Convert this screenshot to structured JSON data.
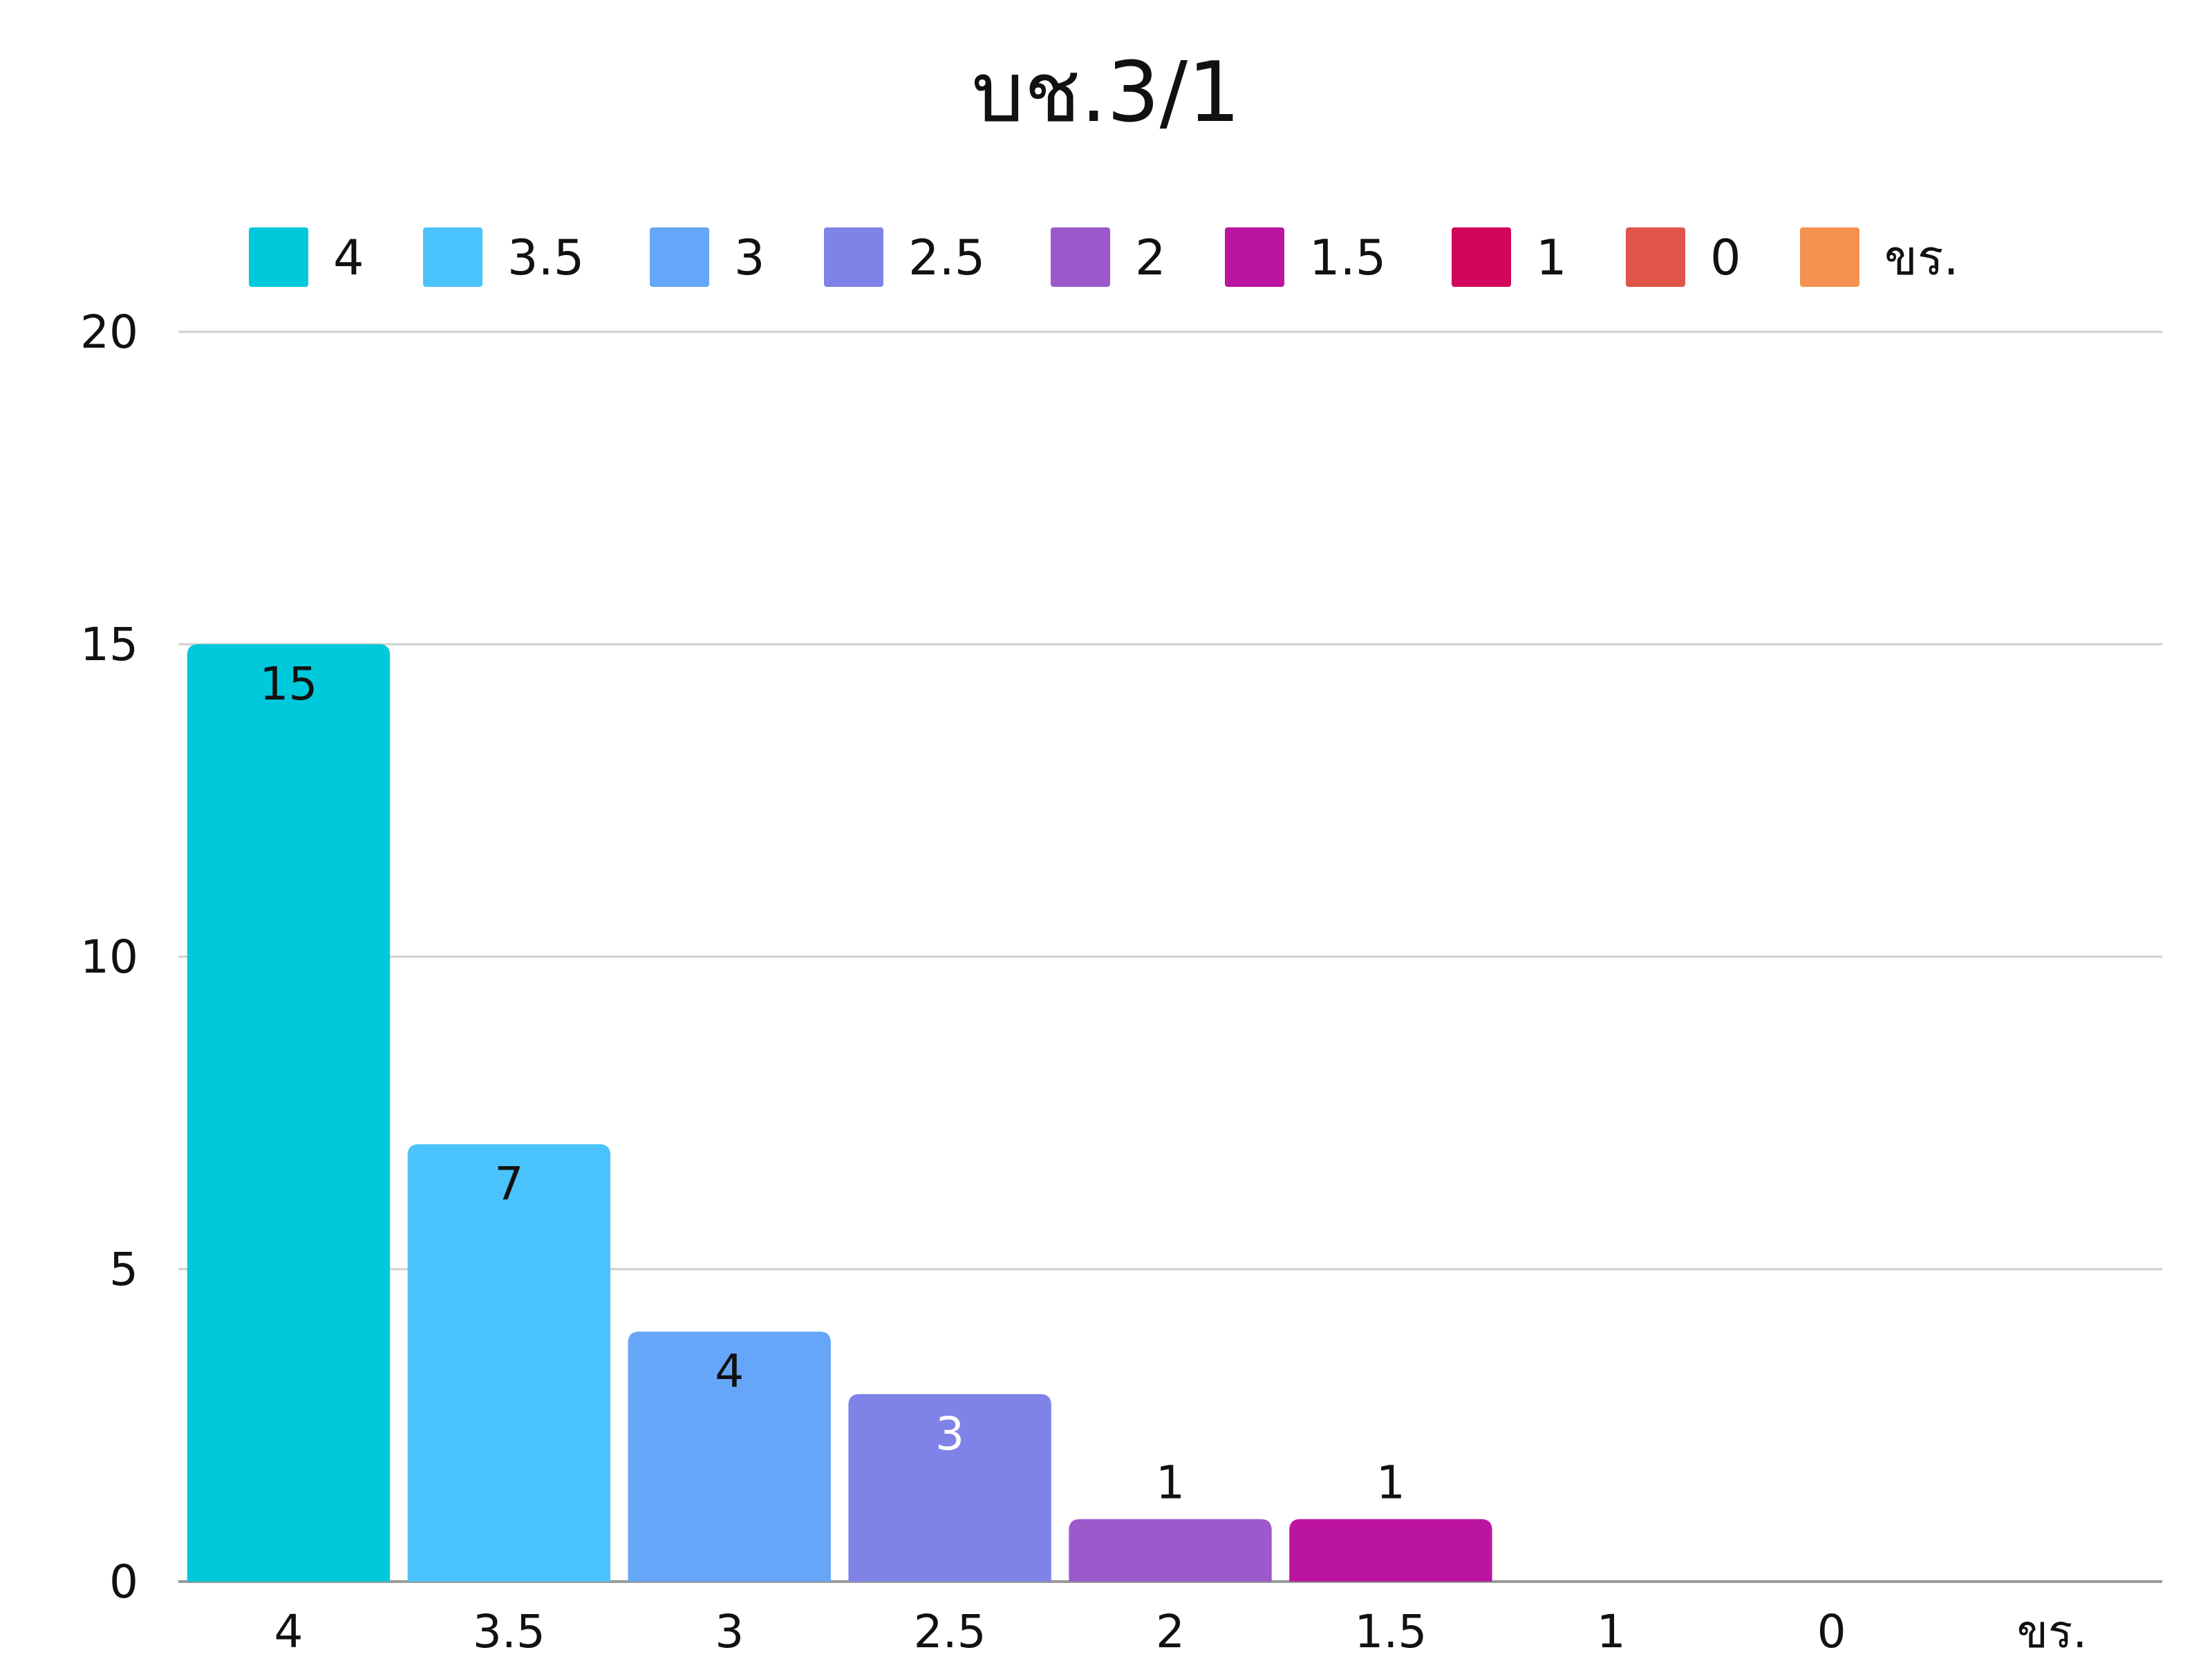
{
  "chart_data": {
    "type": "bar",
    "title": "บช.3/1",
    "xlabel": "",
    "ylabel": "",
    "categories": [
      "4",
      "3.5",
      "3",
      "2.5",
      "2",
      "1.5",
      "1",
      "0",
      "ขร."
    ],
    "values": [
      15,
      7,
      4,
      3,
      1,
      1,
      0,
      0,
      0
    ],
    "colors": [
      "#00c9db",
      "#4ac3fc",
      "#66a6f8",
      "#7f82e6",
      "#9b59cc",
      "#bb14a0",
      "#d1055a",
      "#e05449",
      "#f5924f"
    ],
    "data_label_colors": [
      "#111111",
      "#111111",
      "#111111",
      "#ffffff",
      "#111111",
      "#111111",
      "#111111",
      "#111111",
      "#111111"
    ],
    "ylim": [
      0,
      20
    ],
    "yticks": [
      "0",
      "5",
      "10",
      "15",
      "20"
    ],
    "grid": true,
    "legend_position": "top",
    "legend": [
      "4",
      "3.5",
      "3",
      "2.5",
      "2",
      "1.5",
      "1",
      "0",
      "ขร."
    ]
  }
}
